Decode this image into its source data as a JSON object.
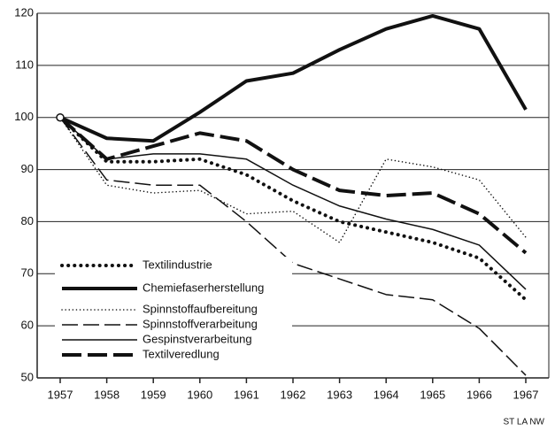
{
  "chart_data": {
    "type": "line",
    "x": [
      1957,
      1958,
      1959,
      1960,
      1961,
      1962,
      1963,
      1964,
      1965,
      1966,
      1967
    ],
    "series": [
      {
        "name": "Textilindustrie",
        "color": "#111111",
        "style": "dotted",
        "width": "thick",
        "values": [
          100,
          91.5,
          91.5,
          92,
          89,
          84,
          80,
          78,
          76,
          73,
          65
        ]
      },
      {
        "name": "Chemiefaserherstellung",
        "color": "#111111",
        "style": "solid",
        "width": "thick",
        "values": [
          100,
          96,
          95.5,
          101,
          107,
          108.5,
          113,
          117,
          119.5,
          117,
          101.5
        ]
      },
      {
        "name": "Spinnstoffaufbereitung",
        "color": "#111111",
        "style": "dotted",
        "width": "thin",
        "values": [
          100,
          87,
          85.5,
          86,
          81.5,
          82,
          76,
          92,
          90.5,
          88,
          77
        ]
      },
      {
        "name": "Spinnstoffverarbeitung",
        "color": "#111111",
        "style": "dashed",
        "width": "thin",
        "values": [
          100,
          88,
          87,
          87,
          80,
          72,
          69,
          66,
          65,
          59.5,
          50.5
        ]
      },
      {
        "name": "Gespinstverarbeitung",
        "color": "#111111",
        "style": "solid",
        "width": "thin",
        "values": [
          100,
          92,
          93,
          93,
          92,
          87,
          83,
          80.5,
          78.5,
          75.5,
          67
        ]
      },
      {
        "name": "Textilveredlung",
        "color": "#111111",
        "style": "dashed",
        "width": "thick",
        "values": [
          100,
          92,
          94.5,
          97,
          95.5,
          90,
          86,
          85,
          85.5,
          81.5,
          74
        ]
      }
    ],
    "xlim": [
      1957,
      1967
    ],
    "xticks": [
      1957,
      1958,
      1959,
      1960,
      1961,
      1962,
      1963,
      1964,
      1965,
      1966,
      1967
    ],
    "ylim": [
      50,
      120
    ],
    "yticks": [
      50,
      60,
      70,
      80,
      90,
      100,
      110,
      120
    ],
    "grid": true,
    "legend": "lower left",
    "source": "ST LA NW"
  }
}
